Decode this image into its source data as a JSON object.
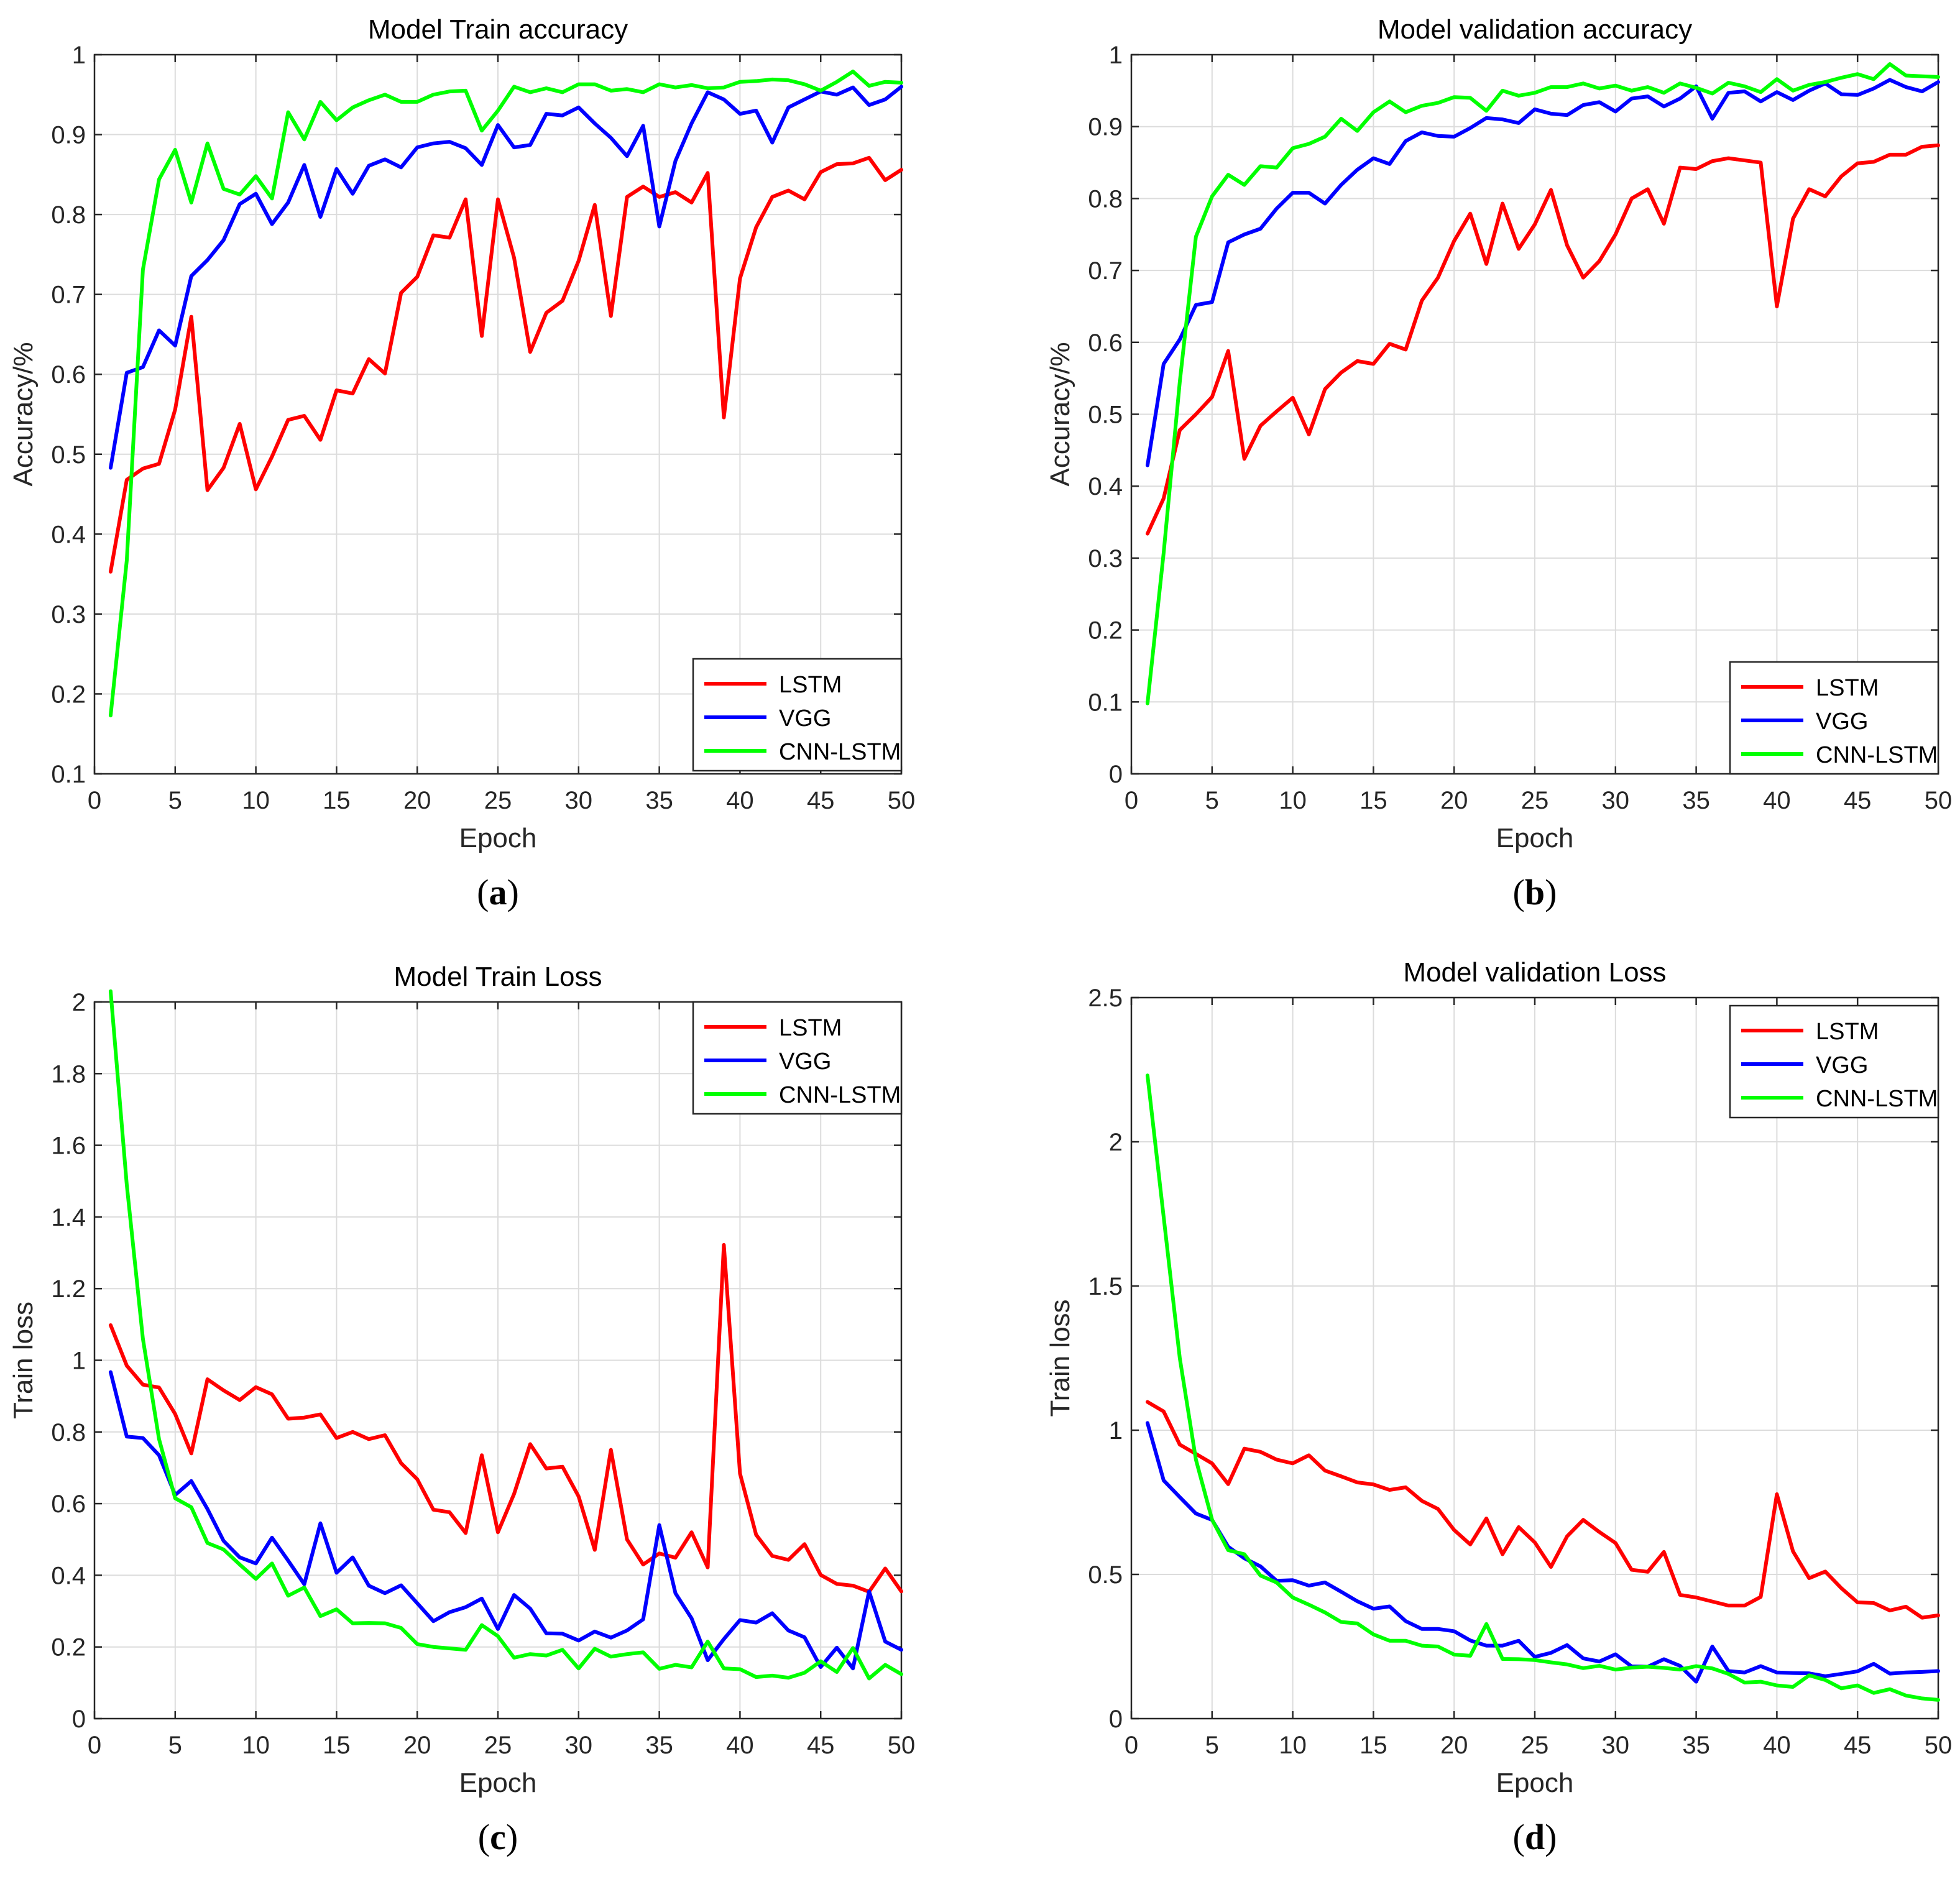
{
  "chart_data": [
    {
      "type": "line",
      "title": "Model Train accuracy",
      "xlabel": "Epoch",
      "ylabel": "Accuracy/%",
      "panel_label": "(a)",
      "xlim": [
        0,
        50
      ],
      "ylim": [
        0.1,
        1
      ],
      "xticks": [
        0,
        5,
        10,
        15,
        20,
        25,
        30,
        35,
        40,
        45,
        50
      ],
      "yticks": [
        0.1,
        0.2,
        0.3,
        0.4,
        0.5,
        0.6,
        0.7,
        0.8,
        0.9,
        1
      ],
      "grid": true,
      "legend": "bottom-right",
      "x": [
        1,
        2,
        3,
        4,
        5,
        6,
        7,
        8,
        9,
        10,
        11,
        12,
        13,
        14,
        15,
        16,
        17,
        18,
        19,
        20,
        21,
        22,
        23,
        24,
        25,
        26,
        27,
        28,
        29,
        30,
        31,
        32,
        33,
        34,
        35,
        36,
        37,
        38,
        39,
        40,
        41,
        42,
        43,
        44,
        45,
        46,
        47,
        48,
        49,
        50
      ],
      "series": [
        {
          "name": "LSTM",
          "color": "#ff0000",
          "values": [
            0.353,
            0.468,
            0.482,
            0.488,
            0.556,
            0.672,
            0.455,
            0.483,
            0.538,
            0.456,
            0.497,
            0.543,
            0.548,
            0.518,
            0.58,
            0.576,
            0.619,
            0.601,
            0.702,
            0.722,
            0.774,
            0.771,
            0.819,
            0.648,
            0.819,
            0.746,
            0.628,
            0.677,
            0.692,
            0.742,
            0.812,
            0.673,
            0.822,
            0.835,
            0.822,
            0.828,
            0.815,
            0.852,
            0.546,
            0.72,
            0.784,
            0.822,
            0.83,
            0.819,
            0.853,
            0.863,
            0.864,
            0.871,
            0.843,
            0.856
          ]
        },
        {
          "name": "VGG",
          "color": "#0000ff",
          "values": [
            0.483,
            0.602,
            0.609,
            0.655,
            0.636,
            0.723,
            0.743,
            0.768,
            0.813,
            0.826,
            0.788,
            0.815,
            0.862,
            0.797,
            0.857,
            0.826,
            0.861,
            0.869,
            0.859,
            0.884,
            0.889,
            0.891,
            0.883,
            0.862,
            0.912,
            0.884,
            0.887,
            0.926,
            0.924,
            0.934,
            0.914,
            0.896,
            0.873,
            0.911,
            0.785,
            0.867,
            0.914,
            0.953,
            0.944,
            0.926,
            0.93,
            0.89,
            0.934,
            0.944,
            0.954,
            0.95,
            0.959,
            0.937,
            0.944,
            0.96
          ]
        },
        {
          "name": "CNN-LSTM",
          "color": "#00ff00",
          "values": [
            0.173,
            0.367,
            0.731,
            0.844,
            0.881,
            0.815,
            0.889,
            0.832,
            0.825,
            0.848,
            0.82,
            0.928,
            0.894,
            0.941,
            0.918,
            0.934,
            0.943,
            0.95,
            0.941,
            0.941,
            0.95,
            0.954,
            0.955,
            0.905,
            0.93,
            0.96,
            0.953,
            0.958,
            0.953,
            0.963,
            0.963,
            0.955,
            0.957,
            0.953,
            0.963,
            0.959,
            0.962,
            0.958,
            0.959,
            0.966,
            0.967,
            0.969,
            0.968,
            0.963,
            0.955,
            0.966,
            0.979,
            0.961,
            0.966,
            0.965
          ]
        }
      ]
    },
    {
      "type": "line",
      "title": "Model validation accuracy",
      "xlabel": "Epoch",
      "ylabel": "Accuracy/%",
      "panel_label": "(b)",
      "xlim": [
        0,
        50
      ],
      "ylim": [
        0,
        1
      ],
      "xticks": [
        0,
        5,
        10,
        15,
        20,
        25,
        30,
        35,
        40,
        45,
        50
      ],
      "yticks": [
        0,
        0.1,
        0.2,
        0.3,
        0.4,
        0.5,
        0.6,
        0.7,
        0.8,
        0.9,
        1
      ],
      "grid": true,
      "legend": "bottom-right",
      "x": [
        1,
        2,
        3,
        4,
        5,
        6,
        7,
        8,
        9,
        10,
        11,
        12,
        13,
        14,
        15,
        16,
        17,
        18,
        19,
        20,
        21,
        22,
        23,
        24,
        25,
        26,
        27,
        28,
        29,
        30,
        31,
        32,
        33,
        34,
        35,
        36,
        37,
        38,
        39,
        40,
        41,
        42,
        43,
        44,
        45,
        46,
        47,
        48,
        49,
        50
      ],
      "series": [
        {
          "name": "LSTM",
          "color": "#ff0000",
          "values": [
            0.334,
            0.383,
            0.478,
            0.5,
            0.524,
            0.588,
            0.438,
            0.484,
            0.504,
            0.523,
            0.472,
            0.535,
            0.558,
            0.574,
            0.57,
            0.598,
            0.59,
            0.658,
            0.69,
            0.741,
            0.779,
            0.709,
            0.793,
            0.73,
            0.764,
            0.812,
            0.735,
            0.69,
            0.713,
            0.75,
            0.8,
            0.813,
            0.765,
            0.843,
            0.841,
            0.852,
            0.856,
            0.853,
            0.85,
            0.65,
            0.772,
            0.813,
            0.803,
            0.831,
            0.849,
            0.851,
            0.861,
            0.861,
            0.872,
            0.874
          ]
        },
        {
          "name": "VGG",
          "color": "#0000ff",
          "values": [
            0.429,
            0.57,
            0.604,
            0.652,
            0.656,
            0.739,
            0.75,
            0.758,
            0.786,
            0.808,
            0.808,
            0.793,
            0.819,
            0.84,
            0.856,
            0.848,
            0.88,
            0.892,
            0.887,
            0.886,
            0.898,
            0.912,
            0.91,
            0.905,
            0.924,
            0.918,
            0.916,
            0.93,
            0.934,
            0.921,
            0.939,
            0.942,
            0.928,
            0.939,
            0.956,
            0.911,
            0.947,
            0.949,
            0.935,
            0.948,
            0.937,
            0.95,
            0.96,
            0.945,
            0.944,
            0.953,
            0.965,
            0.955,
            0.949,
            0.962
          ]
        },
        {
          "name": "CNN-LSTM",
          "color": "#00ff00",
          "values": [
            0.098,
            0.307,
            0.545,
            0.747,
            0.803,
            0.833,
            0.819,
            0.845,
            0.843,
            0.87,
            0.876,
            0.886,
            0.911,
            0.894,
            0.92,
            0.935,
            0.92,
            0.929,
            0.933,
            0.941,
            0.94,
            0.922,
            0.95,
            0.943,
            0.947,
            0.955,
            0.955,
            0.96,
            0.953,
            0.957,
            0.95,
            0.955,
            0.947,
            0.96,
            0.954,
            0.946,
            0.961,
            0.956,
            0.948,
            0.966,
            0.95,
            0.958,
            0.962,
            0.968,
            0.973,
            0.966,
            0.987,
            0.971,
            0.97,
            0.969
          ]
        }
      ]
    },
    {
      "type": "line",
      "title": "Model Train Loss",
      "xlabel": "Epoch",
      "ylabel": "Train loss",
      "panel_label": "(c)",
      "xlim": [
        0,
        50
      ],
      "ylim": [
        0,
        2
      ],
      "xticks": [
        0,
        5,
        10,
        15,
        20,
        25,
        30,
        35,
        40,
        45,
        50
      ],
      "yticks": [
        0,
        0.2,
        0.4,
        0.6,
        0.8,
        1,
        1.2,
        1.4,
        1.6,
        1.8,
        2
      ],
      "grid": true,
      "legend": "top-right",
      "x": [
        1,
        2,
        3,
        4,
        5,
        6,
        7,
        8,
        9,
        10,
        11,
        12,
        13,
        14,
        15,
        16,
        17,
        18,
        19,
        20,
        21,
        22,
        23,
        24,
        25,
        26,
        27,
        28,
        29,
        30,
        31,
        32,
        33,
        34,
        35,
        36,
        37,
        38,
        39,
        40,
        41,
        42,
        43,
        44,
        45,
        46,
        47,
        48,
        49,
        50
      ],
      "series": [
        {
          "name": "LSTM",
          "color": "#ff0000",
          "values": [
            1.098,
            0.985,
            0.932,
            0.924,
            0.85,
            0.74,
            0.947,
            0.916,
            0.889,
            0.925,
            0.905,
            0.837,
            0.84,
            0.849,
            0.783,
            0.8,
            0.78,
            0.791,
            0.713,
            0.668,
            0.583,
            0.576,
            0.518,
            0.735,
            0.52,
            0.627,
            0.766,
            0.698,
            0.703,
            0.62,
            0.471,
            0.75,
            0.5,
            0.43,
            0.461,
            0.449,
            0.52,
            0.422,
            1.322,
            0.684,
            0.513,
            0.454,
            0.443,
            0.487,
            0.401,
            0.376,
            0.371,
            0.354,
            0.419,
            0.355
          ]
        },
        {
          "name": "VGG",
          "color": "#0000ff",
          "values": [
            0.967,
            0.787,
            0.783,
            0.735,
            0.624,
            0.663,
            0.585,
            0.496,
            0.45,
            0.433,
            0.505,
            0.441,
            0.375,
            0.545,
            0.407,
            0.45,
            0.371,
            0.35,
            0.372,
            0.322,
            0.272,
            0.297,
            0.311,
            0.335,
            0.25,
            0.345,
            0.307,
            0.238,
            0.237,
            0.218,
            0.243,
            0.226,
            0.246,
            0.277,
            0.54,
            0.35,
            0.28,
            0.163,
            0.222,
            0.275,
            0.268,
            0.294,
            0.246,
            0.227,
            0.144,
            0.198,
            0.14,
            0.355,
            0.215,
            0.192
          ]
        },
        {
          "name": "CNN-LSTM",
          "color": "#00ff00",
          "values": [
            2.03,
            1.49,
            1.06,
            0.78,
            0.615,
            0.59,
            0.49,
            0.472,
            0.43,
            0.39,
            0.433,
            0.343,
            0.366,
            0.286,
            0.305,
            0.266,
            0.267,
            0.266,
            0.253,
            0.208,
            0.2,
            0.196,
            0.192,
            0.261,
            0.23,
            0.17,
            0.18,
            0.176,
            0.192,
            0.14,
            0.195,
            0.173,
            0.18,
            0.185,
            0.139,
            0.15,
            0.143,
            0.215,
            0.14,
            0.138,
            0.116,
            0.12,
            0.114,
            0.128,
            0.16,
            0.13,
            0.197,
            0.112,
            0.15,
            0.124
          ]
        }
      ]
    },
    {
      "type": "line",
      "title": "Model validation Loss",
      "xlabel": "Epoch",
      "ylabel": "Train loss",
      "panel_label": "(d)",
      "xlim": [
        0,
        50
      ],
      "ylim": [
        0,
        2.5
      ],
      "xticks": [
        0,
        5,
        10,
        15,
        20,
        25,
        30,
        35,
        40,
        45,
        50
      ],
      "yticks": [
        0,
        0.5,
        1,
        1.5,
        2,
        2.5
      ],
      "grid": true,
      "legend": "top-right",
      "x": [
        1,
        2,
        3,
        4,
        5,
        6,
        7,
        8,
        9,
        10,
        11,
        12,
        13,
        14,
        15,
        16,
        17,
        18,
        19,
        20,
        21,
        22,
        23,
        24,
        25,
        26,
        27,
        28,
        29,
        30,
        31,
        32,
        33,
        34,
        35,
        36,
        37,
        38,
        39,
        40,
        41,
        42,
        43,
        44,
        45,
        46,
        47,
        48,
        49,
        50
      ],
      "series": [
        {
          "name": "LSTM",
          "color": "#ff0000",
          "values": [
            1.098,
            1.065,
            0.95,
            0.918,
            0.885,
            0.813,
            0.936,
            0.925,
            0.898,
            0.885,
            0.913,
            0.86,
            0.84,
            0.819,
            0.812,
            0.793,
            0.802,
            0.755,
            0.727,
            0.654,
            0.604,
            0.694,
            0.57,
            0.664,
            0.611,
            0.526,
            0.632,
            0.689,
            0.647,
            0.609,
            0.516,
            0.509,
            0.578,
            0.429,
            0.42,
            0.406,
            0.392,
            0.392,
            0.422,
            0.778,
            0.58,
            0.487,
            0.51,
            0.452,
            0.403,
            0.401,
            0.375,
            0.388,
            0.35,
            0.358
          ]
        },
        {
          "name": "VGG",
          "color": "#0000ff",
          "values": [
            1.025,
            0.826,
            0.768,
            0.711,
            0.689,
            0.596,
            0.556,
            0.528,
            0.478,
            0.48,
            0.461,
            0.472,
            0.44,
            0.407,
            0.381,
            0.389,
            0.338,
            0.311,
            0.311,
            0.303,
            0.271,
            0.253,
            0.253,
            0.27,
            0.214,
            0.228,
            0.255,
            0.209,
            0.198,
            0.223,
            0.181,
            0.18,
            0.206,
            0.183,
            0.128,
            0.25,
            0.165,
            0.16,
            0.182,
            0.16,
            0.158,
            0.157,
            0.147,
            0.155,
            0.164,
            0.19,
            0.156,
            0.16,
            0.162,
            0.165
          ]
        },
        {
          "name": "CNN-LSTM",
          "color": "#00ff00",
          "values": [
            2.23,
            1.74,
            1.25,
            0.898,
            0.69,
            0.584,
            0.57,
            0.496,
            0.472,
            0.42,
            0.395,
            0.368,
            0.335,
            0.33,
            0.292,
            0.27,
            0.27,
            0.253,
            0.25,
            0.222,
            0.218,
            0.328,
            0.207,
            0.206,
            0.203,
            0.195,
            0.188,
            0.175,
            0.183,
            0.17,
            0.177,
            0.18,
            0.176,
            0.17,
            0.182,
            0.174,
            0.155,
            0.125,
            0.128,
            0.115,
            0.11,
            0.15,
            0.134,
            0.105,
            0.115,
            0.089,
            0.102,
            0.08,
            0.07,
            0.065
          ]
        }
      ]
    }
  ]
}
